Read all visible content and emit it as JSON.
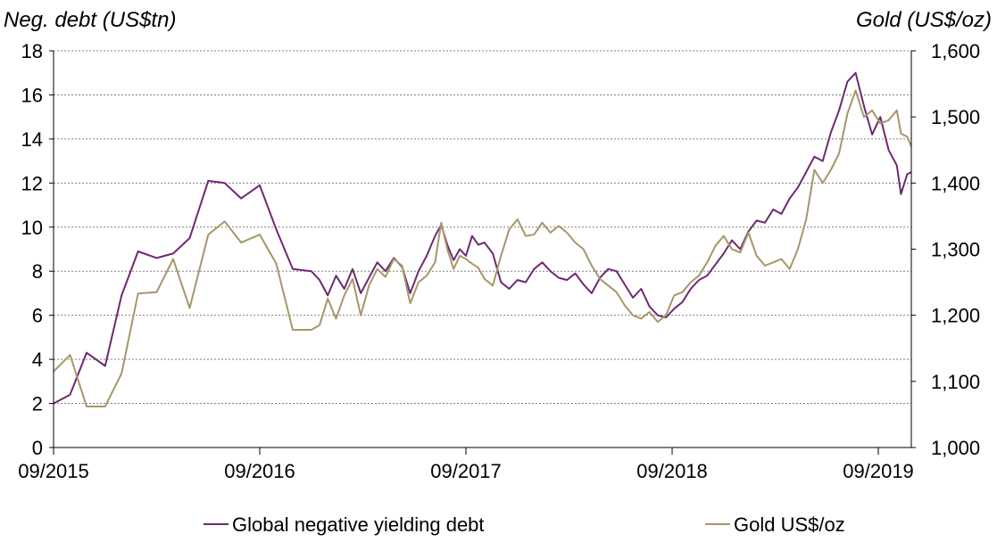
{
  "chart_data": {
    "type": "line",
    "title": "",
    "left_axis": {
      "title": "Neg. debt (US$tn)",
      "min": 0,
      "max": 18,
      "ticks": [
        "0",
        "2",
        "4",
        "6",
        "8",
        "10",
        "12",
        "14",
        "16",
        "18"
      ]
    },
    "right_axis": {
      "title": "Gold (US$/oz)",
      "min": 1000,
      "max": 1600,
      "ticks": [
        "1,000",
        "1,100",
        "1,200",
        "1,300",
        "1,400",
        "1,500",
        "1,600"
      ]
    },
    "x_axis": {
      "ticks": [
        "09/2015",
        "09/2016",
        "09/2017",
        "09/2018",
        "09/2019"
      ],
      "start": 2015.67,
      "end": 2019.83
    },
    "grid": true,
    "series": [
      {
        "name": "Global negative yielding debt",
        "axis": "left",
        "color": "#6d2a6f",
        "points": [
          [
            2015.67,
            2.0
          ],
          [
            2015.75,
            2.4
          ],
          [
            2015.83,
            4.3
          ],
          [
            2015.92,
            3.7
          ],
          [
            2016.0,
            6.9
          ],
          [
            2016.08,
            8.9
          ],
          [
            2016.17,
            8.6
          ],
          [
            2016.25,
            8.8
          ],
          [
            2016.33,
            9.5
          ],
          [
            2016.42,
            12.1
          ],
          [
            2016.5,
            12.0
          ],
          [
            2016.58,
            11.3
          ],
          [
            2016.67,
            11.9
          ],
          [
            2016.75,
            9.9
          ],
          [
            2016.83,
            8.1
          ],
          [
            2016.92,
            8.0
          ],
          [
            2016.96,
            7.6
          ],
          [
            2017.0,
            6.9
          ],
          [
            2017.04,
            7.8
          ],
          [
            2017.08,
            7.2
          ],
          [
            2017.12,
            8.1
          ],
          [
            2017.16,
            7.0
          ],
          [
            2017.2,
            7.7
          ],
          [
            2017.24,
            8.4
          ],
          [
            2017.28,
            8.0
          ],
          [
            2017.32,
            8.6
          ],
          [
            2017.36,
            8.2
          ],
          [
            2017.4,
            7.0
          ],
          [
            2017.44,
            8.0
          ],
          [
            2017.48,
            8.7
          ],
          [
            2017.52,
            9.6
          ],
          [
            2017.55,
            10.1
          ],
          [
            2017.58,
            9.2
          ],
          [
            2017.61,
            8.5
          ],
          [
            2017.64,
            9.0
          ],
          [
            2017.67,
            8.7
          ],
          [
            2017.7,
            9.6
          ],
          [
            2017.73,
            9.2
          ],
          [
            2017.76,
            9.3
          ],
          [
            2017.8,
            8.8
          ],
          [
            2017.84,
            7.5
          ],
          [
            2017.88,
            7.2
          ],
          [
            2017.92,
            7.6
          ],
          [
            2017.96,
            7.5
          ],
          [
            2018.0,
            8.1
          ],
          [
            2018.04,
            8.4
          ],
          [
            2018.08,
            8.0
          ],
          [
            2018.12,
            7.7
          ],
          [
            2018.16,
            7.6
          ],
          [
            2018.2,
            7.9
          ],
          [
            2018.24,
            7.4
          ],
          [
            2018.28,
            7.0
          ],
          [
            2018.32,
            7.7
          ],
          [
            2018.36,
            8.1
          ],
          [
            2018.4,
            8.0
          ],
          [
            2018.44,
            7.4
          ],
          [
            2018.48,
            6.8
          ],
          [
            2018.52,
            7.2
          ],
          [
            2018.56,
            6.4
          ],
          [
            2018.6,
            6.0
          ],
          [
            2018.64,
            5.9
          ],
          [
            2018.68,
            6.3
          ],
          [
            2018.72,
            6.6
          ],
          [
            2018.76,
            7.2
          ],
          [
            2018.8,
            7.6
          ],
          [
            2018.84,
            7.8
          ],
          [
            2018.88,
            8.3
          ],
          [
            2018.92,
            8.8
          ],
          [
            2018.96,
            9.4
          ],
          [
            2019.0,
            9.0
          ],
          [
            2019.04,
            9.8
          ],
          [
            2019.08,
            10.3
          ],
          [
            2019.12,
            10.2
          ],
          [
            2019.16,
            10.8
          ],
          [
            2019.2,
            10.6
          ],
          [
            2019.24,
            11.3
          ],
          [
            2019.28,
            11.8
          ],
          [
            2019.32,
            12.5
          ],
          [
            2019.36,
            13.2
          ],
          [
            2019.4,
            13.0
          ],
          [
            2019.44,
            14.3
          ],
          [
            2019.48,
            15.3
          ],
          [
            2019.52,
            16.6
          ],
          [
            2019.56,
            17.0
          ],
          [
            2019.6,
            15.5
          ],
          [
            2019.64,
            14.2
          ],
          [
            2019.68,
            15.0
          ],
          [
            2019.72,
            13.5
          ],
          [
            2019.76,
            12.8
          ],
          [
            2019.78,
            11.5
          ],
          [
            2019.81,
            12.4
          ],
          [
            2019.83,
            12.5
          ]
        ]
      },
      {
        "name": "Gold US$/oz",
        "axis": "right",
        "color": "#a6976a",
        "points": [
          [
            2015.67,
            1115
          ],
          [
            2015.75,
            1140
          ],
          [
            2015.83,
            1062
          ],
          [
            2015.92,
            1062
          ],
          [
            2016.0,
            1112
          ],
          [
            2016.08,
            1233
          ],
          [
            2016.17,
            1235
          ],
          [
            2016.25,
            1285
          ],
          [
            2016.33,
            1211
          ],
          [
            2016.42,
            1322
          ],
          [
            2016.5,
            1342
          ],
          [
            2016.58,
            1310
          ],
          [
            2016.67,
            1322
          ],
          [
            2016.75,
            1278
          ],
          [
            2016.83,
            1178
          ],
          [
            2016.92,
            1178
          ],
          [
            2016.96,
            1185
          ],
          [
            2017.0,
            1225
          ],
          [
            2017.04,
            1195
          ],
          [
            2017.08,
            1230
          ],
          [
            2017.12,
            1255
          ],
          [
            2017.16,
            1200
          ],
          [
            2017.2,
            1245
          ],
          [
            2017.24,
            1270
          ],
          [
            2017.28,
            1258
          ],
          [
            2017.32,
            1285
          ],
          [
            2017.36,
            1275
          ],
          [
            2017.4,
            1218
          ],
          [
            2017.44,
            1250
          ],
          [
            2017.48,
            1260
          ],
          [
            2017.52,
            1280
          ],
          [
            2017.55,
            1340
          ],
          [
            2017.58,
            1300
          ],
          [
            2017.61,
            1270
          ],
          [
            2017.64,
            1290
          ],
          [
            2017.67,
            1285
          ],
          [
            2017.7,
            1278
          ],
          [
            2017.73,
            1272
          ],
          [
            2017.76,
            1255
          ],
          [
            2017.8,
            1245
          ],
          [
            2017.84,
            1290
          ],
          [
            2017.88,
            1330
          ],
          [
            2017.92,
            1345
          ],
          [
            2017.96,
            1320
          ],
          [
            2018.0,
            1322
          ],
          [
            2018.04,
            1340
          ],
          [
            2018.08,
            1325
          ],
          [
            2018.12,
            1335
          ],
          [
            2018.16,
            1325
          ],
          [
            2018.2,
            1310
          ],
          [
            2018.24,
            1300
          ],
          [
            2018.28,
            1275
          ],
          [
            2018.32,
            1255
          ],
          [
            2018.36,
            1245
          ],
          [
            2018.4,
            1235
          ],
          [
            2018.44,
            1215
          ],
          [
            2018.48,
            1200
          ],
          [
            2018.52,
            1195
          ],
          [
            2018.56,
            1205
          ],
          [
            2018.6,
            1190
          ],
          [
            2018.64,
            1200
          ],
          [
            2018.68,
            1230
          ],
          [
            2018.72,
            1235
          ],
          [
            2018.76,
            1250
          ],
          [
            2018.8,
            1260
          ],
          [
            2018.84,
            1280
          ],
          [
            2018.88,
            1305
          ],
          [
            2018.92,
            1320
          ],
          [
            2018.96,
            1300
          ],
          [
            2019.0,
            1295
          ],
          [
            2019.04,
            1325
          ],
          [
            2019.08,
            1290
          ],
          [
            2019.12,
            1275
          ],
          [
            2019.16,
            1280
          ],
          [
            2019.2,
            1285
          ],
          [
            2019.24,
            1270
          ],
          [
            2019.28,
            1300
          ],
          [
            2019.32,
            1345
          ],
          [
            2019.36,
            1420
          ],
          [
            2019.4,
            1400
          ],
          [
            2019.44,
            1420
          ],
          [
            2019.48,
            1445
          ],
          [
            2019.52,
            1505
          ],
          [
            2019.56,
            1540
          ],
          [
            2019.6,
            1500
          ],
          [
            2019.64,
            1510
          ],
          [
            2019.68,
            1490
          ],
          [
            2019.72,
            1495
          ],
          [
            2019.76,
            1510
          ],
          [
            2019.78,
            1475
          ],
          [
            2019.81,
            1470
          ],
          [
            2019.83,
            1455
          ]
        ]
      }
    ],
    "legend": [
      "Global negative yielding debt",
      "Gold US$/oz"
    ],
    "legend_position": "bottom"
  }
}
